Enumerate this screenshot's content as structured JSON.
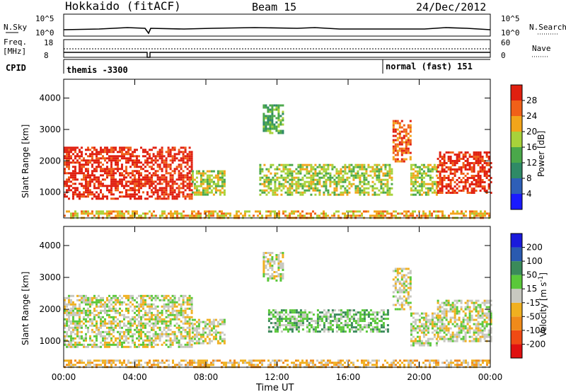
{
  "header": {
    "station": "Hokkaido (fitACF)",
    "beam": "Beam 15",
    "date": "24/Dec/2012"
  },
  "strip": {
    "nsky_label": "N.Sky",
    "nsearch_label": "N.Search",
    "freq_label": "Freq.",
    "freq_unit": "[MHz]",
    "nave_label": "Nave",
    "cpid_label": "CPID",
    "nsky_ticks": [
      "10^5",
      "10^0"
    ],
    "nsearch_ticks": [
      "10^5",
      "10^0"
    ],
    "freq_ticks": [
      "18",
      "8"
    ],
    "nave_ticks": [
      "60",
      "0"
    ],
    "cpid_entries": [
      {
        "text": "themis -3300",
        "start": "00:00"
      },
      {
        "text": "normal (fast) 151",
        "start": "18:00"
      }
    ]
  },
  "chart_data": [
    {
      "type": "heatmap",
      "title": "",
      "xlabel": "Time UT",
      "ylabel": "Slant Range [km]",
      "x_ticks": [
        "00:00",
        "04:00",
        "08:00",
        "12:00",
        "16:00",
        "20:00",
        "00:00"
      ],
      "xlim_hours": [
        0,
        24
      ],
      "y_ticks": [
        1000,
        2000,
        3000,
        4000
      ],
      "ylim": [
        180,
        4600
      ],
      "colorbar": {
        "label": "Power [dB]",
        "ticks": [
          4,
          8,
          12,
          16,
          20,
          24,
          28
        ],
        "colors": [
          "#1a1aff",
          "#2e5fb8",
          "#2f8a66",
          "#4aa84a",
          "#a8d23a",
          "#f2a51a",
          "#f06018",
          "#e02010"
        ]
      },
      "regions": [
        {
          "t": [
            0.0,
            4.9
          ],
          "r": [
            800,
            2450
          ],
          "level": 7
        },
        {
          "t": [
            5.0,
            7.2
          ],
          "r": [
            800,
            2450
          ],
          "level": 7
        },
        {
          "t": [
            7.2,
            9.0
          ],
          "r": [
            950,
            1700
          ],
          "level": 4
        },
        {
          "t": [
            11.2,
            12.3
          ],
          "r": [
            2900,
            3800
          ],
          "level": 3
        },
        {
          "t": [
            11.0,
            18.5
          ],
          "r": [
            900,
            1900
          ],
          "level": 4
        },
        {
          "t": [
            18.5,
            19.5
          ],
          "r": [
            2000,
            3300
          ],
          "level": 6
        },
        {
          "t": [
            19.5,
            21.0
          ],
          "r": [
            900,
            1900
          ],
          "level": 4
        },
        {
          "t": [
            21.0,
            24.0
          ],
          "r": [
            1000,
            2300
          ],
          "level": 7
        },
        {
          "t": [
            0.0,
            24.0
          ],
          "r": [
            180,
            420
          ],
          "level": 5
        }
      ]
    },
    {
      "type": "heatmap",
      "title": "",
      "xlabel": "Time UT",
      "ylabel": "Slant Range [km]",
      "x_ticks": [
        "00:00",
        "04:00",
        "08:00",
        "12:00",
        "16:00",
        "20:00",
        "00:00"
      ],
      "xlim_hours": [
        0,
        24
      ],
      "y_ticks": [
        1000,
        2000,
        3000,
        4000
      ],
      "ylim": [
        180,
        4600
      ],
      "colorbar": {
        "label": "Velocity [m s^-1]",
        "ticks": [
          -200,
          -100,
          -50,
          -15,
          15,
          50,
          100,
          200
        ],
        "colors": [
          "#e01010",
          "#f04a14",
          "#f08a1a",
          "#f0b020",
          "#c8c8c0",
          "#5ac83a",
          "#3a8a5a",
          "#2a5ab0",
          "#1a1adc"
        ]
      },
      "regions": [
        {
          "t": [
            0.0,
            4.9
          ],
          "r": [
            800,
            2450
          ],
          "level": 4
        },
        {
          "t": [
            5.0,
            7.2
          ],
          "r": [
            800,
            2450
          ],
          "level": 4
        },
        {
          "t": [
            7.2,
            9.0
          ],
          "r": [
            950,
            1700
          ],
          "level": 4
        },
        {
          "t": [
            11.2,
            12.3
          ],
          "r": [
            2900,
            3800
          ],
          "level": 4
        },
        {
          "t": [
            11.5,
            18.2
          ],
          "r": [
            1300,
            2000
          ],
          "level": 5
        },
        {
          "t": [
            18.5,
            19.5
          ],
          "r": [
            2000,
            3300
          ],
          "level": 4
        },
        {
          "t": [
            19.5,
            21.0
          ],
          "r": [
            900,
            1900
          ],
          "level": 4
        },
        {
          "t": [
            21.0,
            24.0
          ],
          "r": [
            1000,
            2300
          ],
          "level": 4
        },
        {
          "t": [
            0.0,
            24.0
          ],
          "r": [
            180,
            420
          ],
          "level": 3
        }
      ]
    }
  ]
}
